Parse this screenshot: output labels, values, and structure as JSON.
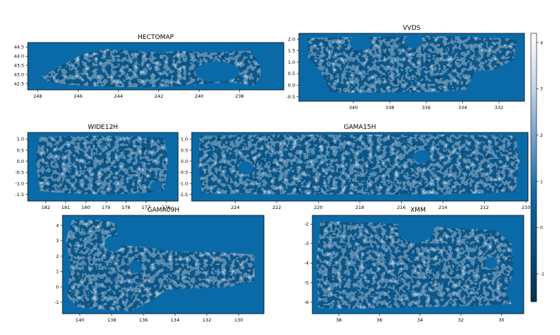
{
  "colors": {
    "background_field": "#0a6aa8",
    "colormap": [
      "#05304f",
      "#0a4f80",
      "#0a6aa8",
      "#6f9fc8",
      "#c4d6ea",
      "#ffffff"
    ]
  },
  "chart_data": [
    {
      "type": "heatmap",
      "title": "HECTOMAP",
      "xlim": [
        248.5,
        235.8
      ],
      "ylim": [
        42.15,
        44.75
      ],
      "xticks": [
        248,
        246,
        244,
        242,
        240,
        238
      ],
      "xtick_labels": [
        "248",
        "246",
        "244",
        "242",
        "240",
        "238"
      ],
      "yticks": [
        42.5,
        43.0,
        43.5,
        44.0,
        44.5
      ],
      "ytick_labels": [
        "42.5",
        "43.0",
        "43.5",
        "44.0",
        "44.5"
      ],
      "footprint": [
        [
          247.8,
          42.9
        ],
        [
          246.8,
          43.5
        ],
        [
          245.8,
          44.1
        ],
        [
          244.6,
          44.4
        ],
        [
          243.3,
          44.3
        ],
        [
          241.9,
          44.2
        ],
        [
          241.0,
          44.3
        ],
        [
          240.3,
          44.25
        ],
        [
          239.5,
          44.2
        ],
        [
          238.6,
          44.25
        ],
        [
          237.5,
          44.3
        ],
        [
          237.0,
          43.6
        ],
        [
          236.9,
          42.9
        ],
        [
          237.3,
          42.4
        ],
        [
          238.4,
          42.55
        ],
        [
          239.7,
          42.5
        ],
        [
          241.0,
          42.35
        ],
        [
          242.4,
          42.3
        ],
        [
          243.8,
          42.3
        ],
        [
          245.2,
          42.35
        ],
        [
          246.5,
          42.45
        ],
        [
          247.5,
          42.6
        ]
      ],
      "holes": [
        [
          239.1,
          43.15,
          1.1,
          0.55
        ]
      ]
    },
    {
      "type": "heatmap",
      "title": "VVDS",
      "xlim": [
        343.0,
        330.6
      ],
      "ylim": [
        -0.7,
        2.25
      ],
      "xticks": [
        340,
        338,
        336,
        334,
        332
      ],
      "xtick_labels": [
        "340",
        "338",
        "336",
        "334",
        "332"
      ],
      "yticks": [
        -0.5,
        0.0,
        0.5,
        1.0,
        1.5,
        2.0
      ],
      "ytick_labels": [
        "-0.5",
        "0.0",
        "0.5",
        "1.0",
        "1.5",
        "2.0"
      ],
      "footprint": [
        [
          342.5,
          2.05
        ],
        [
          339.0,
          2.1
        ],
        [
          336.0,
          2.15
        ],
        [
          333.5,
          2.1
        ],
        [
          331.0,
          2.0
        ],
        [
          331.2,
          1.1
        ],
        [
          332.3,
          0.65
        ],
        [
          333.3,
          0.6
        ],
        [
          333.8,
          -0.2
        ],
        [
          335.5,
          -0.3
        ],
        [
          337.5,
          -0.3
        ],
        [
          339.5,
          -0.35
        ],
        [
          341.3,
          -0.3
        ],
        [
          341.8,
          0.6
        ],
        [
          342.5,
          1.2
        ]
      ],
      "holes": [
        [
          339.6,
          1.85,
          0.6,
          0.35
        ],
        [
          336.7,
          1.9,
          0.5,
          0.3
        ]
      ]
    },
    {
      "type": "heatmap",
      "title": "WIDE12H",
      "xlim": [
        182.9,
        175.4
      ],
      "ylim": [
        -1.8,
        1.3
      ],
      "xticks": [
        182,
        181,
        180,
        179,
        178,
        177,
        176
      ],
      "xtick_labels": [
        "182",
        "181",
        "180",
        "179",
        "178",
        "177",
        "176"
      ],
      "yticks": [
        -1.5,
        -1.0,
        -0.5,
        0.0,
        0.5,
        1.0
      ],
      "ytick_labels": [
        "-1.5",
        "-1.0",
        "-0.5",
        "0.0",
        "0.5",
        "1.0"
      ],
      "footprint": [
        [
          182.3,
          1.1
        ],
        [
          180.8,
          1.15
        ],
        [
          179.0,
          1.15
        ],
        [
          177.5,
          1.12
        ],
        [
          176.1,
          1.05
        ],
        [
          175.9,
          0.0
        ],
        [
          176.1,
          -1.35
        ],
        [
          177.4,
          -1.45
        ],
        [
          179.0,
          -1.5
        ],
        [
          180.8,
          -1.45
        ],
        [
          182.3,
          -1.35
        ],
        [
          182.5,
          0.0
        ]
      ],
      "holes": [
        [
          176.5,
          -1.15,
          0.3,
          0.25
        ]
      ]
    },
    {
      "type": "heatmap",
      "title": "GAMA15H",
      "xlim": [
        226.1,
        209.9
      ],
      "ylim": [
        -1.8,
        1.3
      ],
      "xticks": [
        224,
        222,
        220,
        218,
        216,
        214,
        212,
        210
      ],
      "xtick_labels": [
        "224",
        "222",
        "220",
        "218",
        "216",
        "214",
        "212",
        "210"
      ],
      "yticks": [
        -1.5,
        -1.0,
        -0.5,
        0.0,
        0.5,
        1.0
      ],
      "ytick_labels": [
        "-1.5",
        "-1.0",
        "-0.5",
        "0.0",
        "0.5",
        "1.0"
      ],
      "footprint": [
        [
          225.7,
          1.15
        ],
        [
          222.0,
          1.2
        ],
        [
          218.0,
          1.2
        ],
        [
          214.0,
          1.2
        ],
        [
          210.5,
          1.15
        ],
        [
          210.3,
          0.0
        ],
        [
          210.5,
          -1.4
        ],
        [
          214.0,
          -1.5
        ],
        [
          218.0,
          -1.5
        ],
        [
          222.0,
          -1.5
        ],
        [
          225.6,
          -1.45
        ],
        [
          225.8,
          0.0
        ]
      ],
      "holes": [
        [
          223.5,
          -0.3,
          0.35,
          0.3
        ],
        [
          215.0,
          0.2,
          0.4,
          0.3
        ]
      ]
    },
    {
      "type": "heatmap",
      "title": "GAMA09H",
      "xlim": [
        141.1,
        128.4
      ],
      "ylim": [
        -1.75,
        4.65
      ],
      "xticks": [
        140,
        138,
        136,
        134,
        132,
        130
      ],
      "xtick_labels": [
        "140",
        "138",
        "136",
        "134",
        "132",
        "130"
      ],
      "yticks": [
        -1,
        0,
        1,
        2,
        3,
        4
      ],
      "ytick_labels": [
        "-1",
        "0",
        "1",
        "2",
        "3",
        "4"
      ],
      "footprint": [
        [
          140.5,
          4.35
        ],
        [
          138.5,
          4.35
        ],
        [
          137.7,
          4.1
        ],
        [
          137.6,
          2.7
        ],
        [
          136.0,
          2.6
        ],
        [
          134.0,
          2.3
        ],
        [
          131.0,
          2.25
        ],
        [
          129.0,
          2.1
        ],
        [
          129.0,
          0.4
        ],
        [
          130.5,
          0.0
        ],
        [
          132.5,
          -0.1
        ],
        [
          134.5,
          -0.2
        ],
        [
          135.5,
          -0.9
        ],
        [
          136.8,
          -1.6
        ],
        [
          138.5,
          -1.5
        ],
        [
          140.2,
          -1.3
        ],
        [
          140.8,
          -0.6
        ],
        [
          140.6,
          1.5
        ],
        [
          140.9,
          3.0
        ]
      ],
      "holes": [
        [
          137.9,
          2.8,
          0.55,
          0.5
        ],
        [
          136.5,
          1.3,
          0.4,
          0.4
        ]
      ]
    },
    {
      "type": "heatmap",
      "title": "XMM",
      "xlim": [
        39.3,
        28.9
      ],
      "ylim": [
        -6.6,
        -1.55
      ],
      "xticks": [
        38,
        36,
        34,
        32,
        30
      ],
      "xtick_labels": [
        "38",
        "36",
        "34",
        "32",
        "30"
      ],
      "yticks": [
        -6,
        -5,
        -4,
        -3,
        -2
      ],
      "ytick_labels": [
        "-6",
        "-5",
        "-4",
        "-3",
        "-2"
      ],
      "footprint": [
        [
          38.9,
          -1.85
        ],
        [
          37.2,
          -1.9
        ],
        [
          35.5,
          -1.95
        ],
        [
          34.0,
          -2.05
        ],
        [
          32.5,
          -2.2
        ],
        [
          30.3,
          -2.3
        ],
        [
          29.5,
          -3.0
        ],
        [
          29.4,
          -4.5
        ],
        [
          29.8,
          -5.5
        ],
        [
          29.5,
          -6.1
        ],
        [
          31.5,
          -6.2
        ],
        [
          33.5,
          -6.25
        ],
        [
          35.5,
          -6.3
        ],
        [
          37.5,
          -6.35
        ],
        [
          39.0,
          -6.3
        ],
        [
          39.1,
          -4.0
        ]
      ],
      "holes": [
        [
          34.2,
          -2.2,
          0.9,
          0.75
        ],
        [
          30.5,
          -4.0,
          0.3,
          0.3
        ]
      ]
    }
  ],
  "colorbar": {
    "range": [
      -1.6,
      4.2
    ],
    "ticks": [
      -1,
      0,
      1,
      2,
      3,
      4
    ],
    "tick_labels": [
      "-1",
      "0",
      "1",
      "2",
      "3",
      "4"
    ]
  }
}
